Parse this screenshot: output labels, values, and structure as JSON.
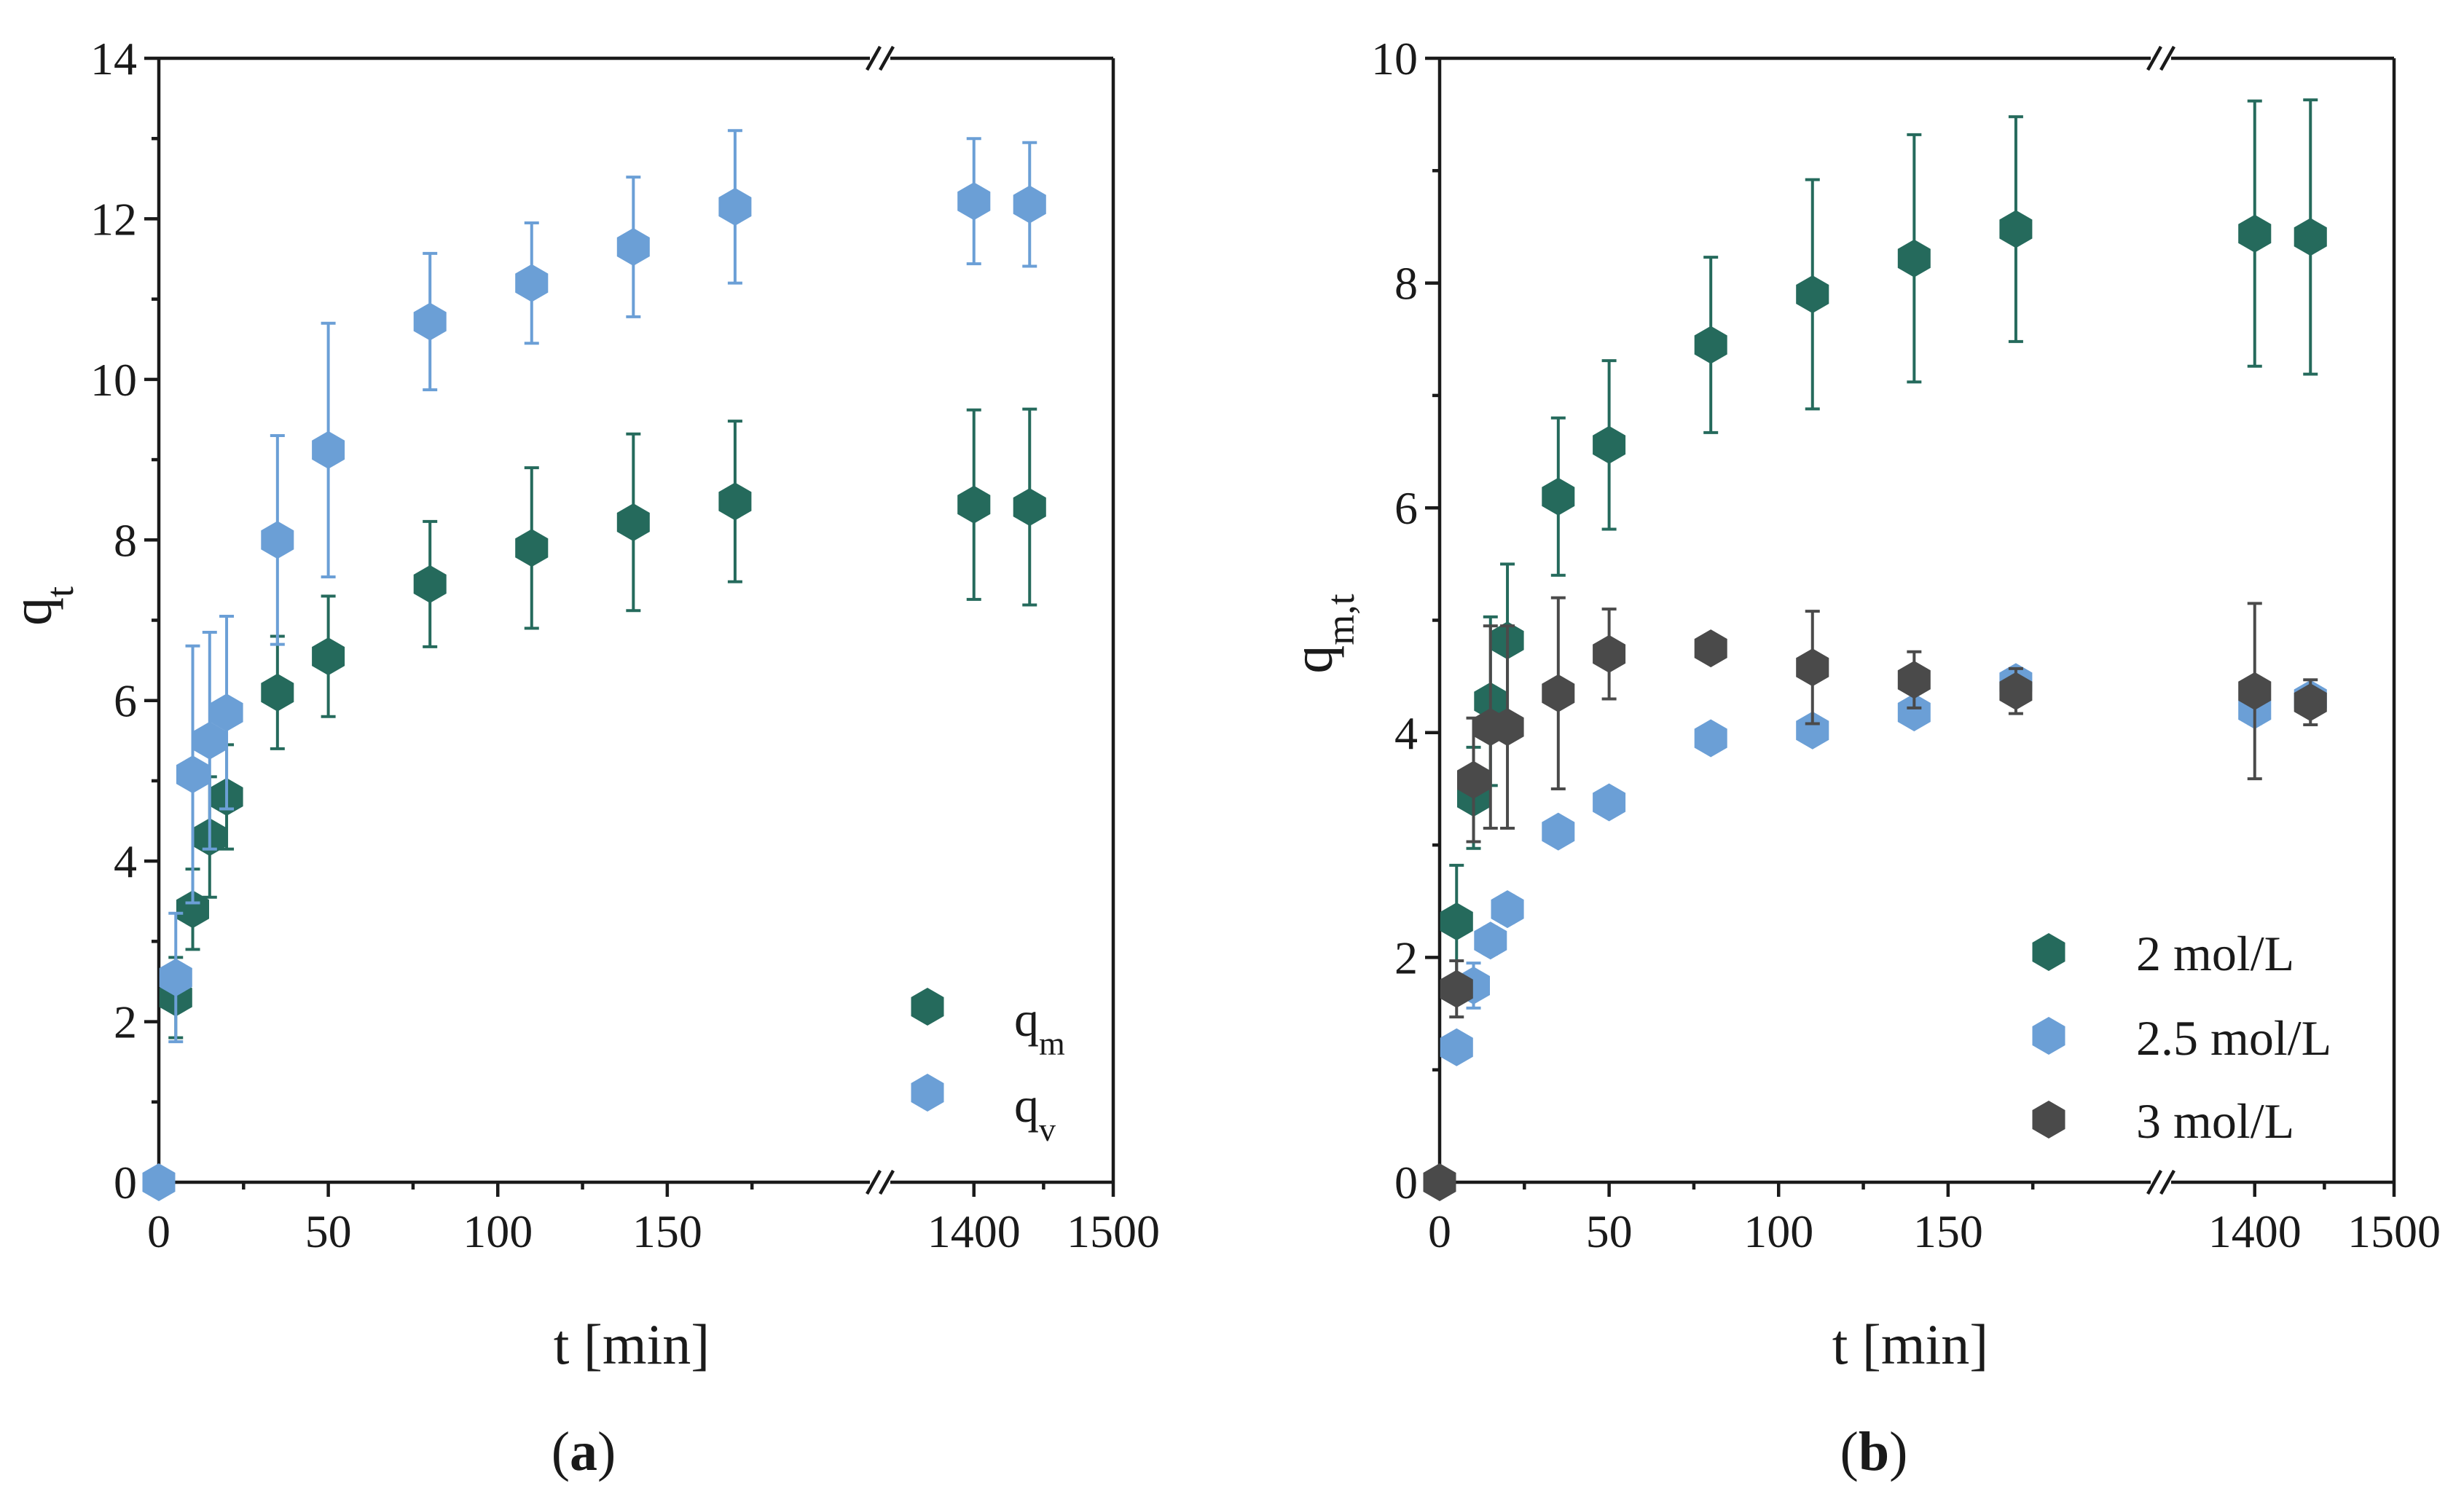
{
  "chart_data": [
    {
      "type": "scatter",
      "panel_label": "a",
      "ylabel": {
        "base": "q",
        "sub": "t"
      },
      "xlabel": "t [min]",
      "ylim": [
        0,
        14
      ],
      "yticks": [
        "0",
        "2",
        "4",
        "6",
        "8",
        "10",
        "12",
        "14"
      ],
      "x_broken_axis": {
        "segment1_range": [
          0,
          210
        ],
        "segment2_range": [
          1340,
          1500
        ]
      },
      "xticks": [
        "0",
        "50",
        "100",
        "150",
        "1400",
        "1500"
      ],
      "legend_position": "bottom-right",
      "series": [
        {
          "name": {
            "base": "q",
            "sub": "m"
          },
          "color": "#256a5c",
          "points": [
            {
              "x": 5,
              "y": 2.3,
              "err": 0.5
            },
            {
              "x": 10,
              "y": 3.4,
              "err": 0.5
            },
            {
              "x": 15,
              "y": 4.3,
              "err": 0.75
            },
            {
              "x": 20,
              "y": 4.8,
              "err": 0.65
            },
            {
              "x": 35,
              "y": 6.1,
              "err": 0.7
            },
            {
              "x": 50,
              "y": 6.55,
              "err": 0.75
            },
            {
              "x": 80,
              "y": 7.45,
              "err": 0.78
            },
            {
              "x": 110,
              "y": 7.9,
              "err": 1.0
            },
            {
              "x": 140,
              "y": 8.22,
              "err": 1.1
            },
            {
              "x": 170,
              "y": 8.48,
              "err": 1.0
            },
            {
              "x": 1400,
              "y": 8.44,
              "err": 1.18
            },
            {
              "x": 1440,
              "y": 8.41,
              "err": 1.22
            }
          ]
        },
        {
          "name": {
            "base": "q",
            "sub": "v"
          },
          "color": "#6b9fd6",
          "points": [
            {
              "x": 0,
              "y": 0,
              "err": 0
            },
            {
              "x": 5,
              "y": 2.55,
              "err": 0.8
            },
            {
              "x": 10,
              "y": 5.08,
              "err": 1.6
            },
            {
              "x": 15,
              "y": 5.5,
              "err": 1.35
            },
            {
              "x": 20,
              "y": 5.85,
              "err": 1.2
            },
            {
              "x": 35,
              "y": 8.0,
              "err": 1.3
            },
            {
              "x": 50,
              "y": 9.12,
              "err": 1.58
            },
            {
              "x": 80,
              "y": 10.72,
              "err": 0.85
            },
            {
              "x": 110,
              "y": 11.2,
              "err": 0.75
            },
            {
              "x": 140,
              "y": 11.65,
              "err": 0.87
            },
            {
              "x": 170,
              "y": 12.15,
              "err": 0.95
            },
            {
              "x": 1400,
              "y": 12.22,
              "err": 0.78
            },
            {
              "x": 1440,
              "y": 12.18,
              "err": 0.77
            }
          ]
        }
      ]
    },
    {
      "type": "scatter",
      "panel_label": "b",
      "ylabel": {
        "base": "q",
        "sub": "m,t"
      },
      "xlabel": "t [min]",
      "ylim": [
        0,
        10
      ],
      "yticks": [
        "0",
        "2",
        "4",
        "6",
        "8",
        "10"
      ],
      "x_broken_axis": {
        "segment1_range": [
          0,
          210
        ],
        "segment2_range": [
          1340,
          1500
        ]
      },
      "xticks": [
        "0",
        "50",
        "100",
        "150",
        "1400",
        "1500"
      ],
      "legend_position": "bottom-right",
      "series": [
        {
          "name": "2 mol/L",
          "color": "#256a5c",
          "points": [
            {
              "x": 5,
              "y": 2.32,
              "err": 0.5
            },
            {
              "x": 10,
              "y": 3.42,
              "err": 0.45
            },
            {
              "x": 15,
              "y": 4.28,
              "err": 0.75
            },
            {
              "x": 20,
              "y": 4.82,
              "err": 0.68
            },
            {
              "x": 35,
              "y": 6.1,
              "err": 0.7
            },
            {
              "x": 50,
              "y": 6.56,
              "err": 0.75
            },
            {
              "x": 80,
              "y": 7.45,
              "err": 0.78
            },
            {
              "x": 110,
              "y": 7.9,
              "err": 1.02
            },
            {
              "x": 140,
              "y": 8.22,
              "err": 1.1
            },
            {
              "x": 170,
              "y": 8.48,
              "err": 1.0
            },
            {
              "x": 1400,
              "y": 8.44,
              "err": 1.18
            },
            {
              "x": 1440,
              "y": 8.41,
              "err": 1.22
            }
          ]
        },
        {
          "name": "2.5 mol/L",
          "color": "#6b9fd6",
          "points": [
            {
              "x": 5,
              "y": 1.2,
              "err": 0.1
            },
            {
              "x": 10,
              "y": 1.75,
              "err": 0.2
            },
            {
              "x": 15,
              "y": 2.15,
              "err": 0.12
            },
            {
              "x": 20,
              "y": 2.43,
              "err": 0.12
            },
            {
              "x": 35,
              "y": 3.12,
              "err": 0.1
            },
            {
              "x": 50,
              "y": 3.38,
              "err": 0.1
            },
            {
              "x": 80,
              "y": 3.95,
              "err": 0.08
            },
            {
              "x": 110,
              "y": 4.02,
              "err": 0.1
            },
            {
              "x": 140,
              "y": 4.18,
              "err": 0.1
            },
            {
              "x": 170,
              "y": 4.45,
              "err": 0.12
            },
            {
              "x": 1400,
              "y": 4.2,
              "err": 0.12
            },
            {
              "x": 1440,
              "y": 4.3,
              "err": 0.1
            }
          ]
        },
        {
          "name": "3 mol/L",
          "color": "#4a4a4a",
          "points": [
            {
              "x": 0,
              "y": 0,
              "err": 0
            },
            {
              "x": 5,
              "y": 1.72,
              "err": 0.25
            },
            {
              "x": 10,
              "y": 3.58,
              "err": 0.55
            },
            {
              "x": 15,
              "y": 4.05,
              "err": 0.9
            },
            {
              "x": 20,
              "y": 4.05,
              "err": 0.9
            },
            {
              "x": 35,
              "y": 4.35,
              "err": 0.85
            },
            {
              "x": 50,
              "y": 4.7,
              "err": 0.4
            },
            {
              "x": 80,
              "y": 4.75,
              "err": 0.08
            },
            {
              "x": 110,
              "y": 4.58,
              "err": 0.5
            },
            {
              "x": 140,
              "y": 4.47,
              "err": 0.25
            },
            {
              "x": 170,
              "y": 4.37,
              "err": 0.2
            },
            {
              "x": 1400,
              "y": 4.37,
              "err": 0.78
            },
            {
              "x": 1440,
              "y": 4.27,
              "err": 0.2
            }
          ]
        }
      ]
    }
  ]
}
